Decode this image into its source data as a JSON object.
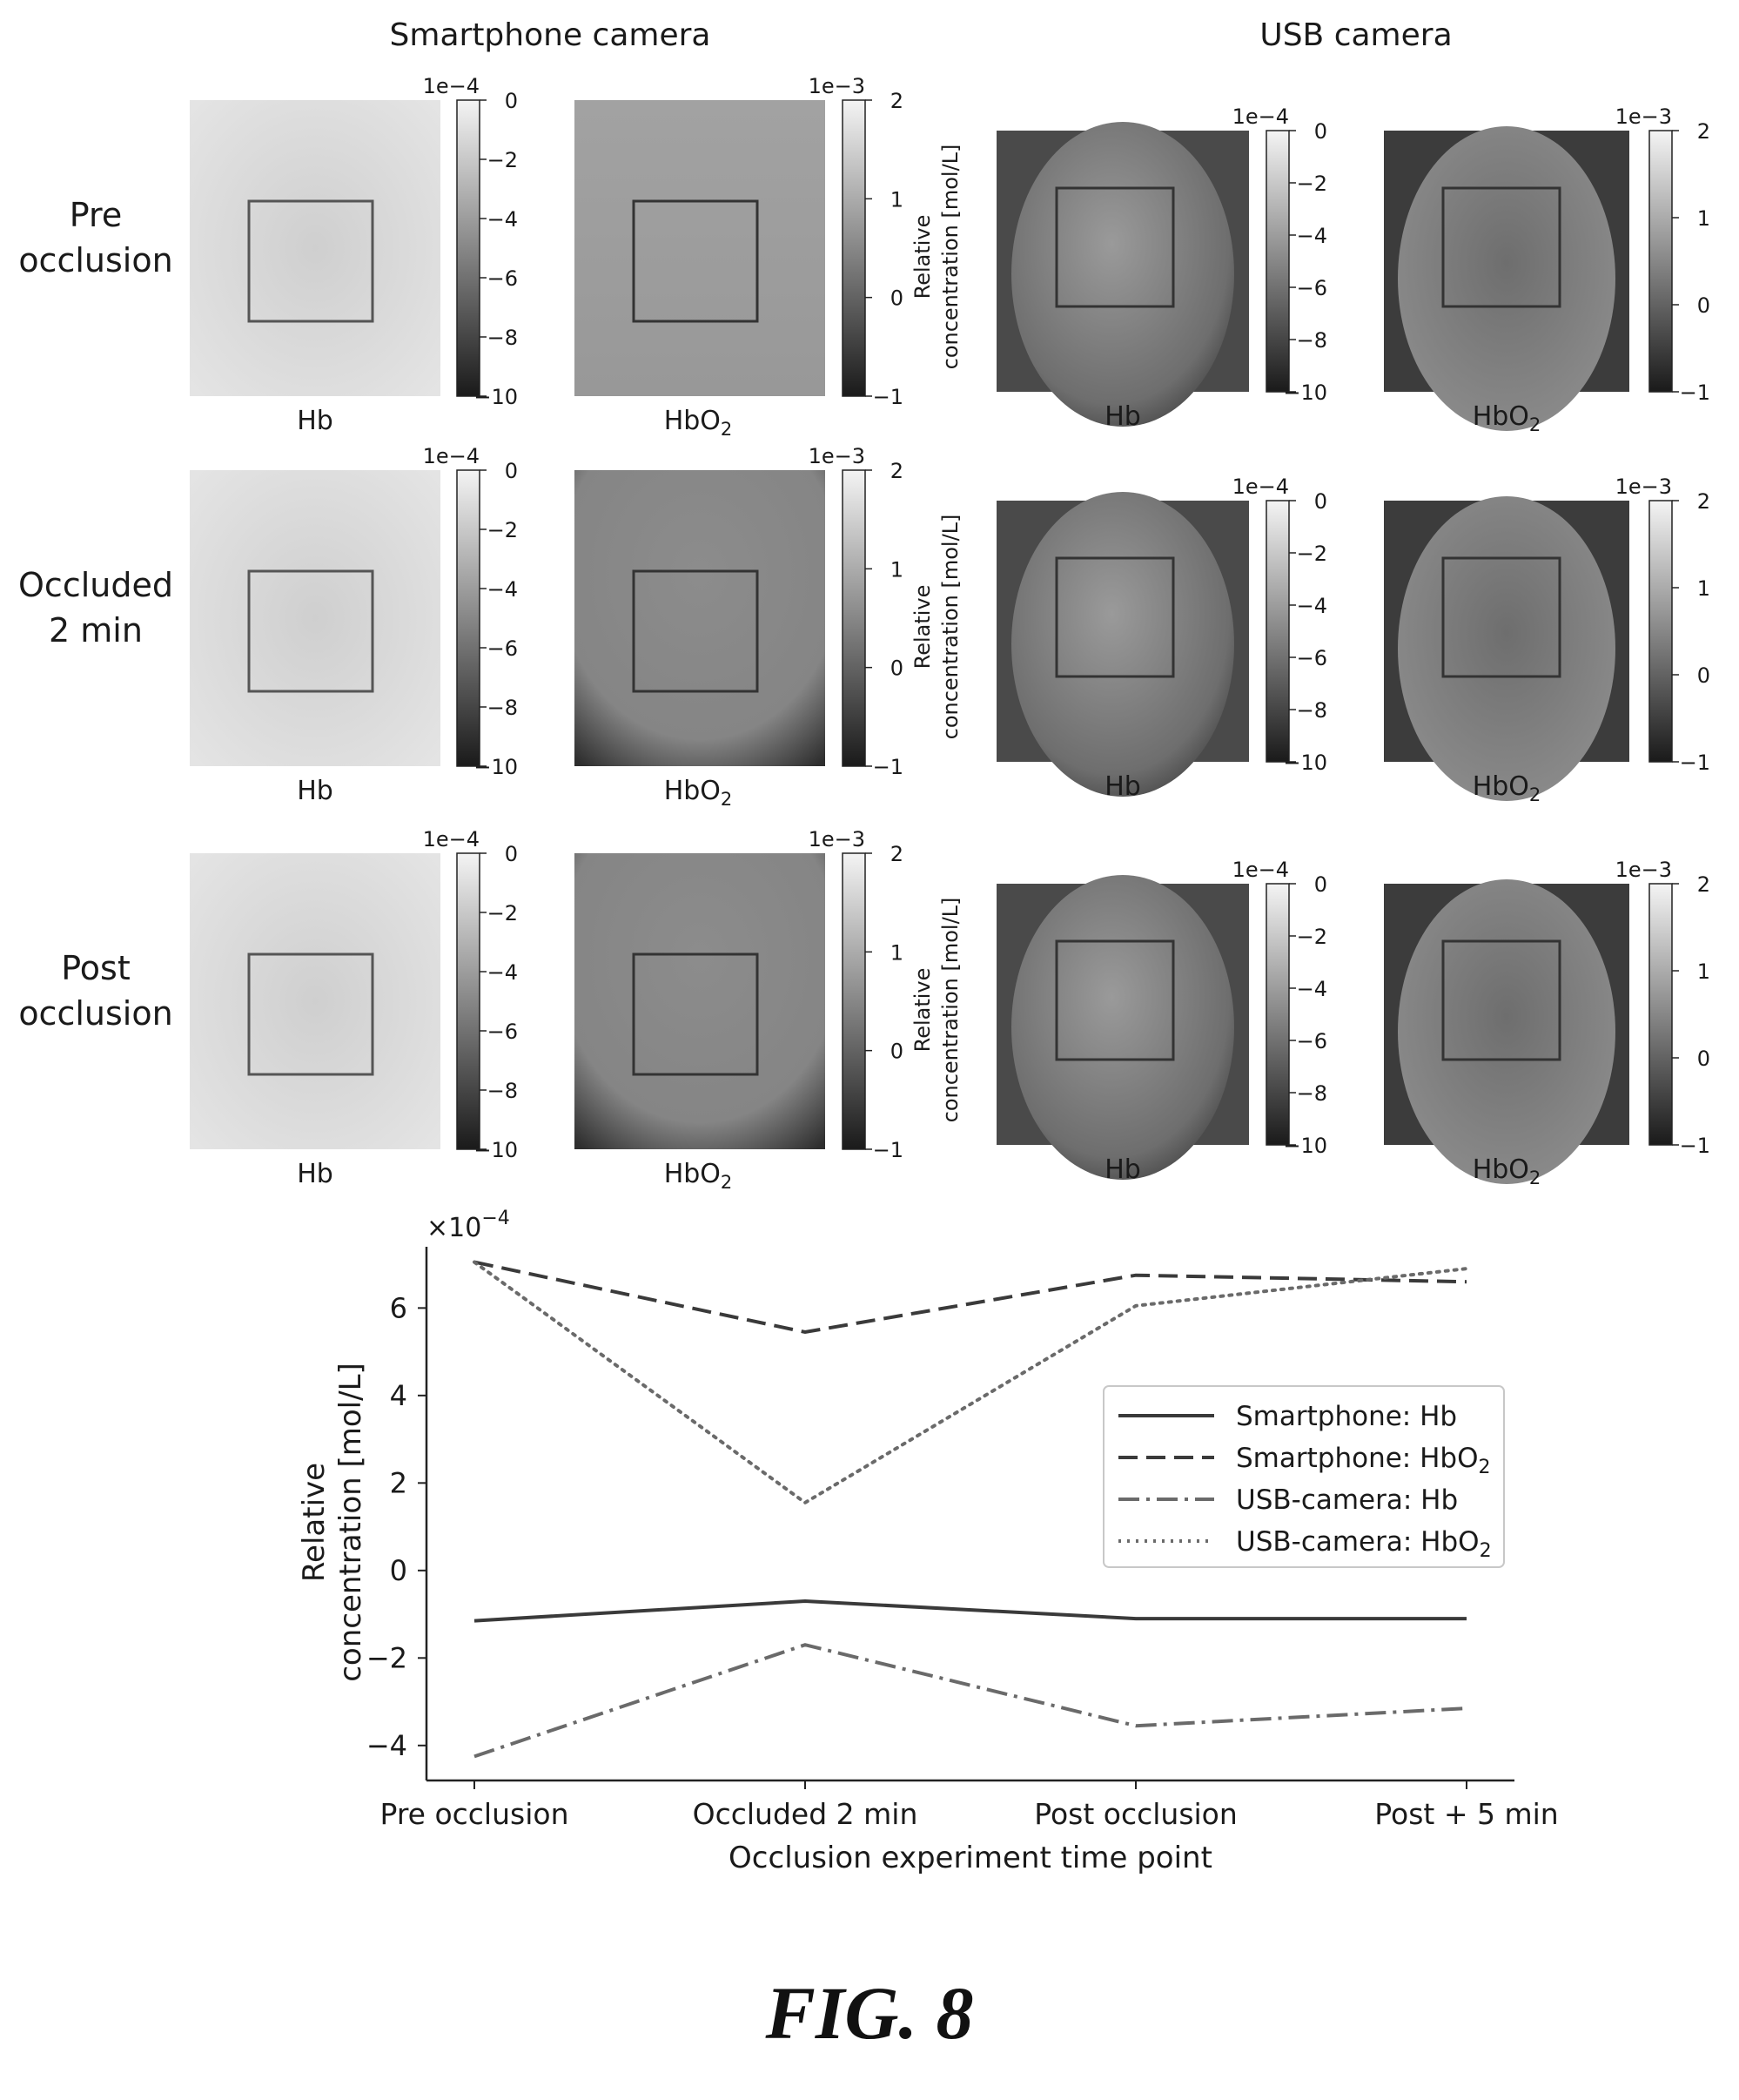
{
  "headers": {
    "smartphone": "Smartphone camera",
    "usb": "USB camera"
  },
  "rows": [
    {
      "label_lines": [
        "Pre",
        "occlusion"
      ]
    },
    {
      "label_lines": [
        "Occluded",
        "2 min"
      ]
    },
    {
      "label_lines": [
        "Post",
        "occlusion"
      ]
    }
  ],
  "image_labels": {
    "hb": "Hb",
    "hbo2": "HbO",
    "hbo2_sub": "2"
  },
  "colorbars": {
    "hb": {
      "exponent": "1e−4",
      "ticks": [
        "0",
        "−2",
        "−4",
        "−6",
        "−8",
        "−10"
      ]
    },
    "hbo2": {
      "exponent": "1e−3",
      "ticks": [
        "2",
        "1",
        "0",
        "−1"
      ]
    }
  },
  "usb_ylabel": [
    "Relative",
    "concentration [mol/L]"
  ],
  "chart_data": {
    "type": "line",
    "xlabel": "Occlusion experiment time point",
    "ylabel": [
      "Relative",
      "concentration [mol/L]"
    ],
    "y_multiplier": "×10",
    "y_multiplier_exp": "−4",
    "categories": [
      "Pre occlusion",
      "Occluded 2 min",
      "Post occlusion",
      "Post + 5 min"
    ],
    "ylim": [
      -4.8,
      7.4
    ],
    "yticks": [
      -4,
      -2,
      0,
      2,
      4,
      6
    ],
    "ytick_labels": [
      "−4",
      "−2",
      "0",
      "2",
      "4",
      "6"
    ],
    "grid": false,
    "legend_position": "center-right",
    "series": [
      {
        "name": "Smartphone: Hb",
        "style": "solid",
        "color": "#3a3a3a",
        "values": [
          -1.15,
          -0.7,
          -1.1,
          -1.1
        ]
      },
      {
        "name": "Smartphone: HbO",
        "name_sub": "2",
        "style": "dashed",
        "color": "#3a3a3a",
        "values": [
          7.05,
          5.45,
          6.75,
          6.6
        ]
      },
      {
        "name": "USB-camera: Hb",
        "style": "dashdot",
        "color": "#6a6a6a",
        "values": [
          -4.25,
          -1.7,
          -3.55,
          -3.15
        ]
      },
      {
        "name": "USB-camera: HbO",
        "name_sub": "2",
        "style": "dotted",
        "color": "#6a6a6a",
        "values": [
          7.05,
          1.55,
          6.05,
          6.9
        ]
      }
    ]
  },
  "figure_label": "FIG. 8"
}
